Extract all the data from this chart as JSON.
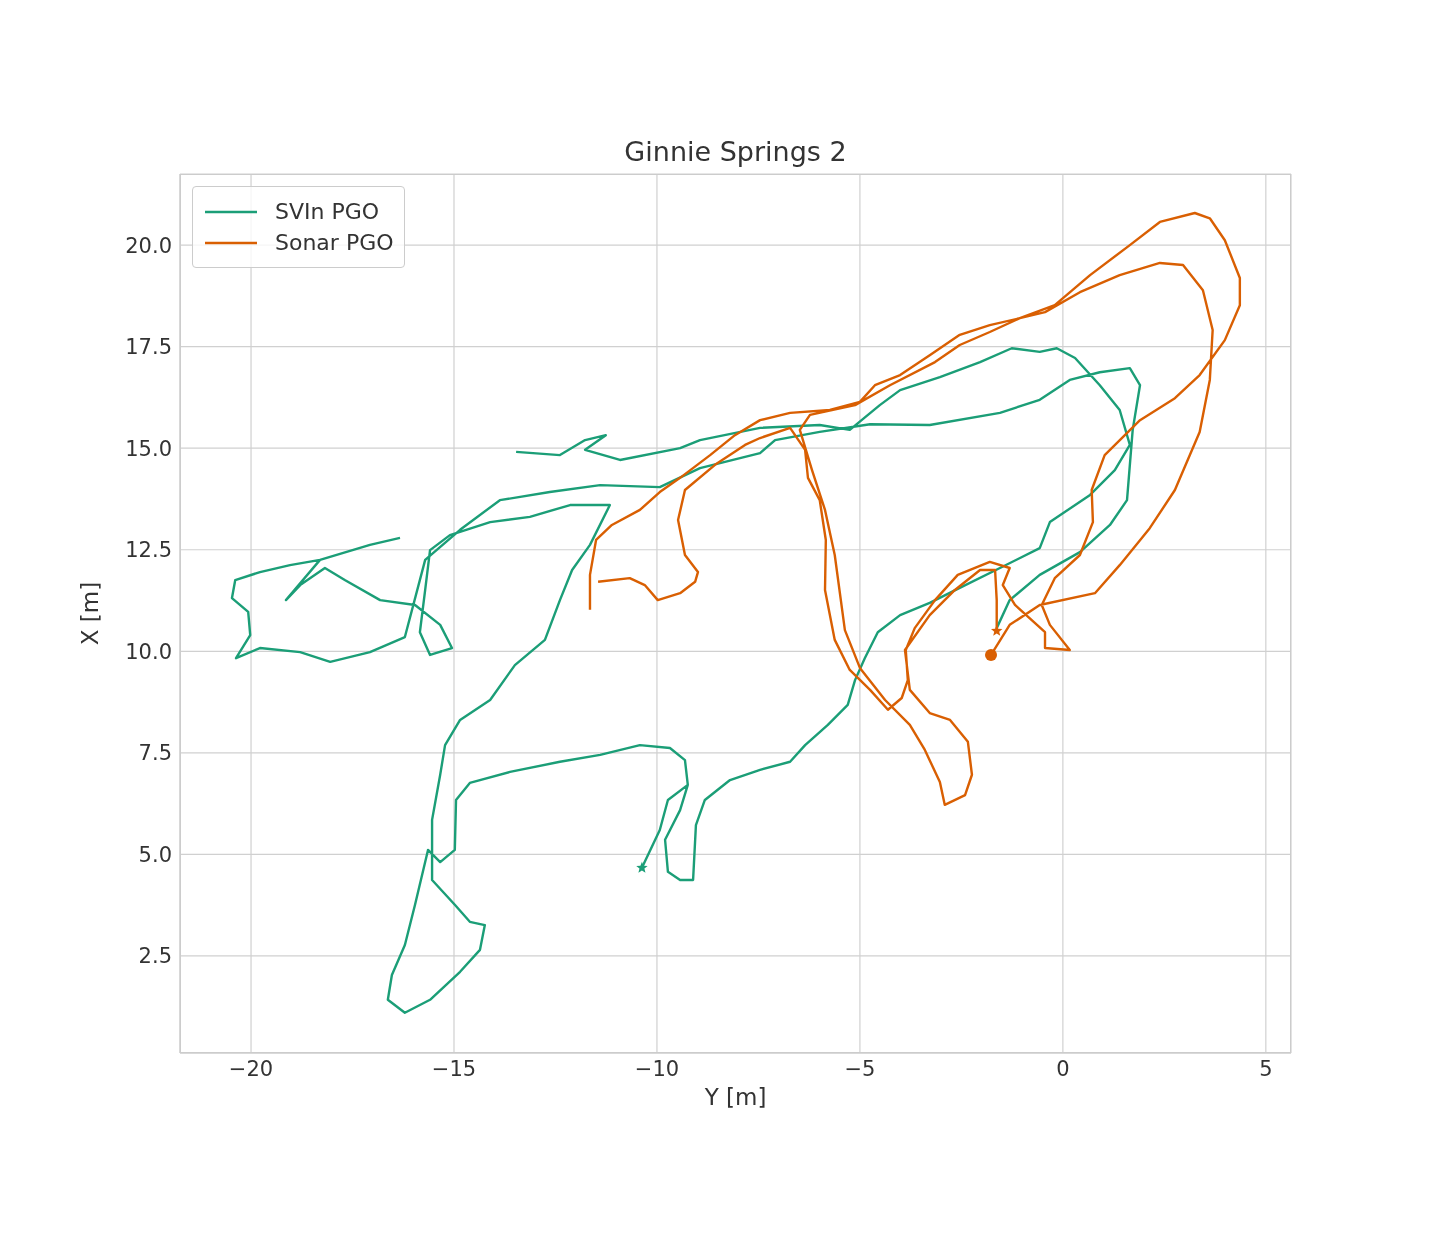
{
  "chart_data": {
    "type": "line",
    "title": "Ginnie Springs 2",
    "xlabel": "Y [m]",
    "ylabel": "X [m]",
    "xlim": [
      -21.75,
      5.62
    ],
    "ylim": [
      0.11,
      21.75
    ],
    "xticks": [
      {
        "value": -20,
        "label": "−20"
      },
      {
        "value": -15,
        "label": "−15"
      },
      {
        "value": -10,
        "label": "−10"
      },
      {
        "value": -5,
        "label": "−5"
      },
      0,
      5
    ],
    "yticks": [
      2.5,
      {
        "value": 5,
        "label": "5.0"
      },
      7.5,
      {
        "value": 10,
        "label": "10.0"
      },
      12.5,
      {
        "value": 15,
        "label": "15.0"
      },
      17.5,
      {
        "value": 20,
        "label": "20.0"
      }
    ],
    "grid": true,
    "legend": "top left",
    "line_style": "solid",
    "series": [
      {
        "name": "SVIn PGO",
        "type": "line",
        "color": "#1b9e77",
        "x": [
          -10.37,
          -9.93,
          -9.73,
          -9.24,
          -9.31,
          -9.68,
          -10.42,
          -11.4,
          -12.39,
          -13.62,
          -14.61,
          -14.95,
          -14.98,
          -15.34,
          -15.64,
          -15.96,
          -16.21,
          -16.53,
          -16.63,
          -16.21,
          -15.59,
          -14.85,
          -14.36,
          -14.24,
          -14.61,
          -14.98,
          -15.54,
          -15.54,
          -15.34,
          -15.22,
          -14.85,
          -14.11,
          -13.5,
          -12.76,
          -12.39,
          -12.09,
          -11.65,
          -11.16,
          -12.14,
          -13.13,
          -14.11,
          -15.1,
          -15.59,
          -15.71,
          -15.84,
          -15.59,
          -15.05,
          -15.34,
          -15.96,
          -16.82,
          -17.68,
          -18.18,
          -18.79,
          -19.14,
          -18.3,
          -17.07,
          -16.33,
          null,
          -18.3,
          -19.04,
          -19.78,
          -20.39,
          -20.47,
          -20.07,
          -20.02,
          -20.37,
          -19.78,
          -18.79,
          -18.05,
          -17.07,
          -16.21,
          -15.71,
          -14.85,
          -13.87,
          -12.64,
          -11.4,
          -9.93,
          -8.94,
          -7.46,
          -7.09,
          -5.99,
          -4.75,
          -3.28,
          -1.55,
          -0.57,
          0.17,
          0.91,
          1.65,
          1.9,
          1.72,
          1.58,
          1.16,
          0.42,
          -0.57,
          -1.31,
          -1.63,
          null,
          -13.47,
          -12.39,
          -11.77,
          -11.26,
          -11.77,
          -10.91,
          -9.43,
          -8.94,
          -7.46,
          -5.99,
          -5.25,
          -4.51,
          -4.01,
          -3.03,
          -2.04,
          -1.26,
          -0.57,
          -0.15,
          0.3,
          0.91,
          1.4,
          1.65,
          1.28,
          0.67,
          -0.32,
          -0.57,
          -1.55,
          -2.54,
          -3.28,
          -4.01,
          -4.56,
          -4.88,
          -5.12,
          -5.3,
          -5.79,
          -6.35,
          -6.72,
          -7.46,
          -8.2,
          -8.82,
          -9.04,
          -9.11,
          -9.43,
          -9.73,
          -9.8,
          -9.43,
          -9.24
        ],
        "values": [
          4.67,
          5.6,
          6.34,
          6.71,
          7.32,
          7.62,
          7.69,
          7.45,
          7.28,
          7.03,
          6.76,
          6.34,
          5.11,
          4.81,
          5.11,
          3.76,
          2.77,
          2.03,
          1.42,
          1.1,
          1.42,
          2.11,
          2.65,
          3.26,
          3.34,
          3.76,
          4.37,
          5.85,
          6.96,
          7.69,
          8.31,
          8.8,
          9.66,
          10.28,
          11.26,
          12.0,
          12.62,
          13.6,
          13.6,
          13.31,
          13.18,
          12.86,
          12.49,
          11.51,
          10.47,
          9.91,
          10.08,
          10.65,
          11.14,
          11.26,
          11.75,
          12.05,
          11.63,
          11.26,
          12.25,
          12.62,
          12.79,
          null,
          12.25,
          12.12,
          11.95,
          11.75,
          11.31,
          10.97,
          10.4,
          9.83,
          10.08,
          9.98,
          9.74,
          9.98,
          10.35,
          12.25,
          12.99,
          13.72,
          13.92,
          14.09,
          14.04,
          14.51,
          14.88,
          15.2,
          15.4,
          15.59,
          15.57,
          15.87,
          16.19,
          16.68,
          16.87,
          16.97,
          16.55,
          15.45,
          13.72,
          13.11,
          12.44,
          11.88,
          11.26,
          10.57,
          null,
          14.91,
          14.83,
          15.2,
          15.32,
          14.96,
          14.71,
          15.0,
          15.2,
          15.5,
          15.57,
          15.45,
          16.06,
          16.43,
          16.75,
          17.12,
          17.46,
          17.37,
          17.46,
          17.22,
          16.55,
          15.94,
          15.08,
          14.46,
          13.85,
          13.18,
          12.54,
          12.05,
          11.56,
          11.19,
          10.89,
          10.47,
          9.83,
          9.29,
          8.68,
          8.19,
          7.69,
          7.28,
          7.08,
          6.83,
          6.34,
          5.72,
          4.37,
          4.37,
          4.57,
          5.36,
          6.09,
          6.71
        ]
      },
      {
        "name": "Sonar PGO",
        "type": "line",
        "color": "#d95f02",
        "x": [
          -1.77,
          -1.31,
          -0.57,
          0.79,
          1.4,
          2.14,
          2.76,
          3.37,
          3.62,
          3.69,
          3.45,
          2.96,
          2.39,
          1.4,
          0.42,
          -0.44,
          -1.06,
          -1.8,
          -2.54,
          -3.28,
          -4.01,
          -4.63,
          -5.0,
          -5.74,
          -6.72,
          -7.46,
          -8.08,
          -8.69,
          -9.43,
          -9.93,
          -10.42,
          -11.11,
          -11.5,
          -11.65,
          -11.65,
          null,
          -11.45,
          -10.67,
          -10.3,
          -9.98,
          -9.43,
          -9.06,
          -8.99,
          -9.31,
          -9.48,
          -9.31,
          -8.57,
          -7.83,
          -7.46,
          -6.72,
          -6.35,
          -6.28,
          -5.99,
          -5.84,
          -5.86,
          -5.62,
          -5.25,
          -4.75,
          -4.31,
          -3.97,
          -3.82,
          -3.87,
          -3.65,
          -3.15,
          -2.59,
          -1.8,
          -1.31,
          -1.48,
          -1.18,
          -0.44,
          -0.44,
          0.17,
          -0.32,
          -0.52,
          -0.2,
          0.42,
          0.74,
          0.71,
          1.03,
          1.9,
          2.76,
          3.37,
          3.99,
          4.36,
          4.36,
          3.99,
          3.62,
          3.25,
          2.39,
          1.65,
          0.67,
          -0.2,
          -1.06,
          -1.8,
          -2.54,
          -3.15,
          -4.26,
          -5.12,
          -6.23,
          -6.48,
          -6.18,
          -5.86,
          -5.62,
          -5.37,
          -5.0,
          -4.38,
          -3.77,
          -3.4,
          -3.03,
          -2.91,
          -2.41,
          -2.24,
          -2.34,
          -2.78,
          -3.28,
          -3.77,
          -3.89,
          -3.28,
          -2.66,
          -2.04,
          -1.67,
          -1.63,
          -1.63
        ],
        "values": [
          9.91,
          10.65,
          11.14,
          11.43,
          12.12,
          13.03,
          13.97,
          15.4,
          16.68,
          17.91,
          18.89,
          19.51,
          19.56,
          19.26,
          18.84,
          18.35,
          18.2,
          18.03,
          17.79,
          17.29,
          16.8,
          16.55,
          16.14,
          15.94,
          15.87,
          15.69,
          15.32,
          14.83,
          14.27,
          13.92,
          13.48,
          13.11,
          12.74,
          11.88,
          11.02,
          null,
          11.71,
          11.8,
          11.63,
          11.26,
          11.43,
          11.71,
          11.95,
          12.37,
          13.23,
          13.97,
          14.59,
          15.08,
          15.25,
          15.5,
          14.96,
          14.27,
          13.72,
          12.74,
          11.51,
          10.28,
          9.54,
          9.05,
          8.56,
          8.85,
          9.29,
          10.03,
          10.57,
          11.26,
          11.88,
          12.2,
          12.05,
          11.63,
          11.14,
          10.47,
          10.08,
          10.03,
          10.65,
          11.14,
          11.8,
          12.37,
          13.18,
          13.97,
          14.83,
          15.69,
          16.23,
          16.8,
          17.66,
          18.52,
          19.19,
          20.12,
          20.66,
          20.79,
          20.57,
          20.0,
          19.26,
          18.52,
          18.2,
          17.86,
          17.54,
          17.12,
          16.55,
          16.06,
          15.82,
          15.45,
          14.46,
          13.48,
          12.37,
          10.52,
          9.59,
          8.8,
          8.19,
          7.57,
          6.78,
          6.22,
          6.46,
          6.96,
          7.77,
          8.31,
          8.48,
          9.05,
          10.03,
          10.89,
          11.51,
          12.0,
          12.0,
          11.26,
          10.5
        ]
      },
      {
        "type": "scatter",
        "marker": "star",
        "color": "#1b9e77",
        "x": [
          -10.37
        ],
        "values": [
          4.67
        ]
      },
      {
        "type": "scatter",
        "marker": "star",
        "color": "#d95f02",
        "x": [
          -1.63
        ],
        "values": [
          10.5
        ]
      },
      {
        "type": "scatter",
        "marker": "circle",
        "color": "#d95f02",
        "x": [
          -1.77
        ],
        "values": [
          9.91
        ]
      }
    ]
  }
}
